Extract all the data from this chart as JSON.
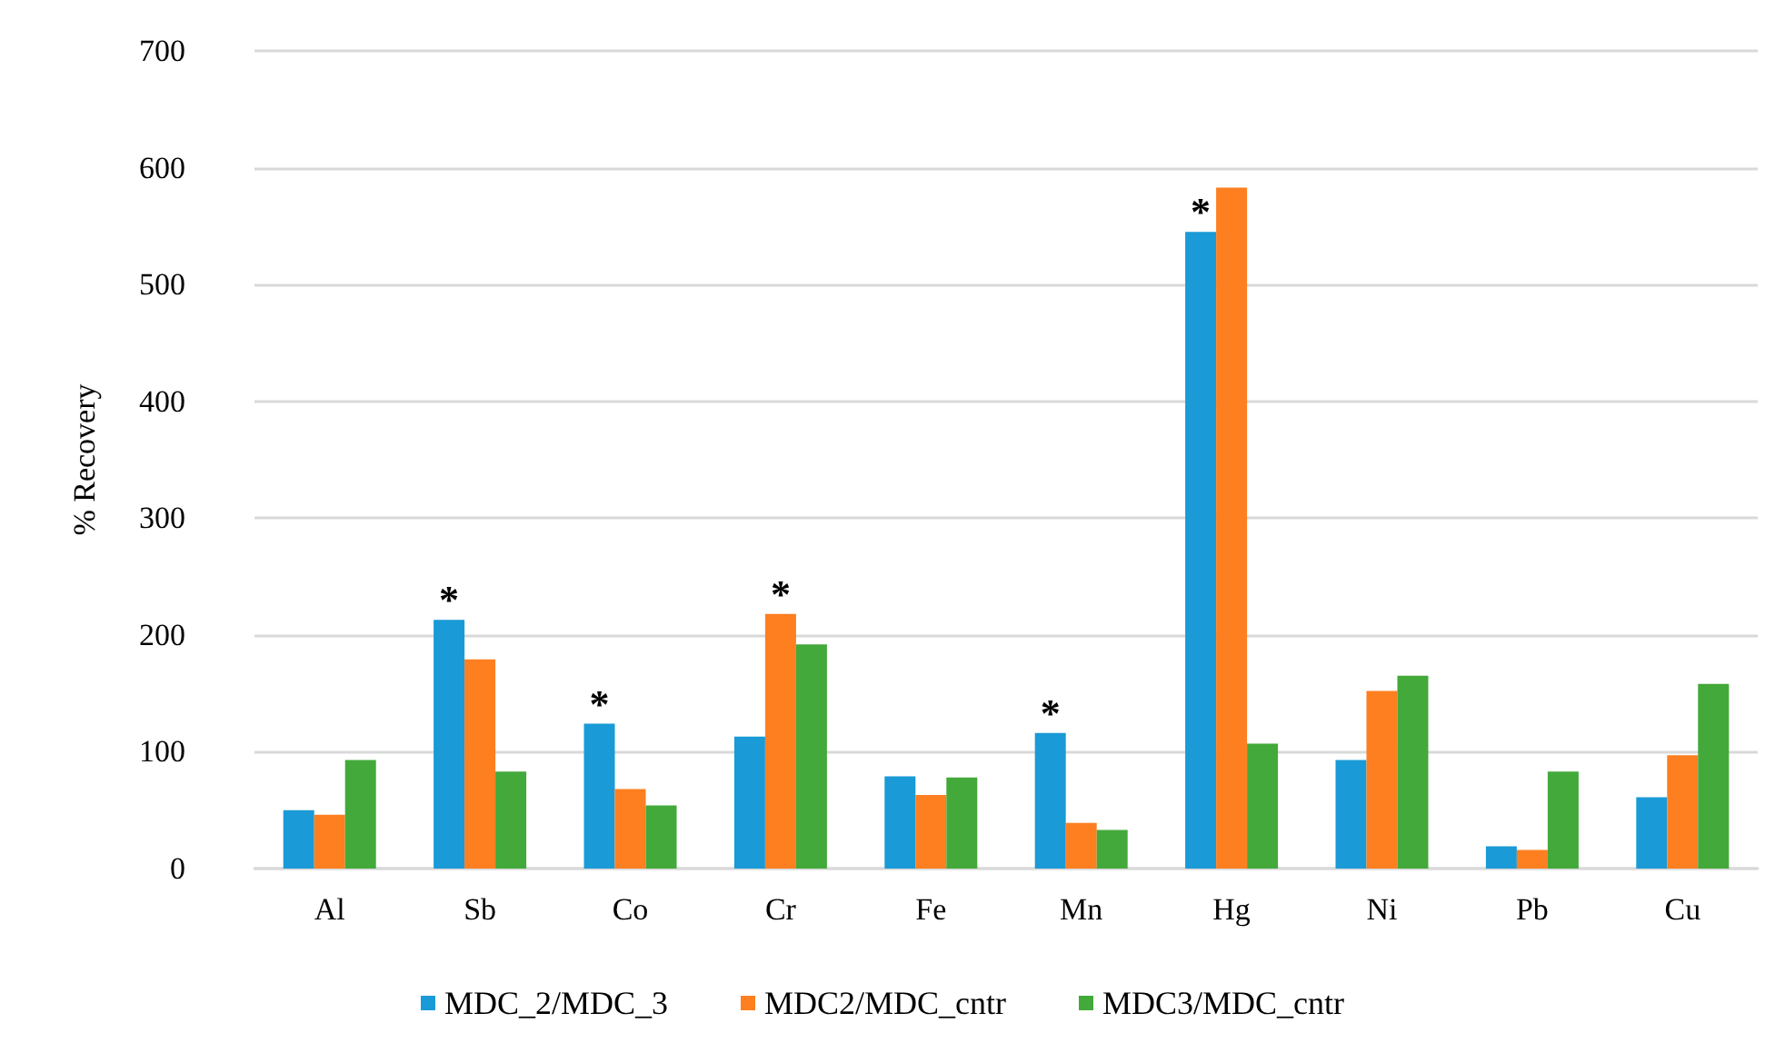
{
  "chart_data": {
    "type": "bar",
    "ylabel": "% Recovery",
    "categories": [
      "Al",
      "Sb",
      "Co",
      "Cr",
      "Fe",
      "Mn",
      "Hg",
      "Ni",
      "Pb",
      "Cu"
    ],
    "series": [
      {
        "name": "MDC_2/MDC_3",
        "color": "#1a9ad6",
        "values": [
          50,
          213,
          124,
          113,
          79,
          116,
          545,
          93,
          19,
          61
        ],
        "value_labels": [
          null,
          "*",
          "*",
          null,
          null,
          "*",
          "*",
          null,
          null,
          null
        ]
      },
      {
        "name": "MDC2/MDC_cntr",
        "color": "#fd7f20",
        "values": [
          46,
          179,
          68,
          218,
          63,
          39,
          583,
          152,
          16,
          97
        ],
        "value_labels": [
          null,
          null,
          null,
          "*",
          null,
          null,
          null,
          null,
          null,
          null
        ]
      },
      {
        "name": "MDC3/MDC_cntr",
        "color": "#43a93a",
        "values": [
          93,
          83,
          54,
          192,
          78,
          33,
          107,
          165,
          83,
          158
        ]
      }
    ],
    "ylim": [
      0,
      700
    ],
    "yticks": [
      0,
      100,
      200,
      300,
      400,
      500,
      600,
      700
    ],
    "grid": "y",
    "legend": "bottom"
  }
}
